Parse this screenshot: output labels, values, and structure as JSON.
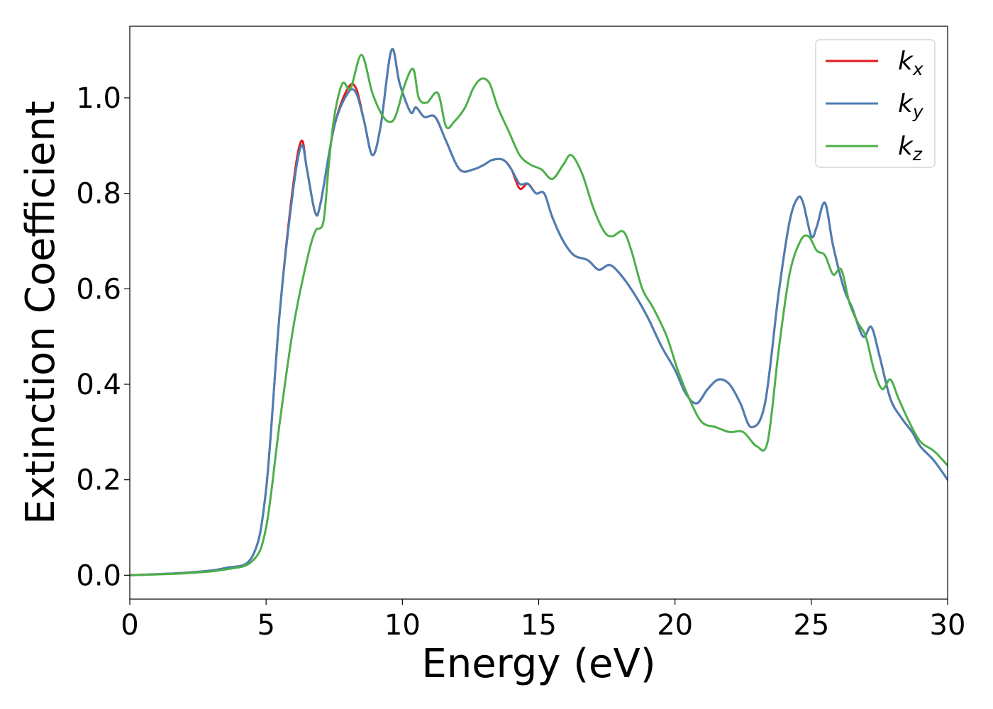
{
  "chart_data": {
    "type": "line",
    "title": "",
    "xlabel": "Energy (eV)",
    "ylabel": "Extinction Coefficient",
    "xlim": [
      0,
      30
    ],
    "ylim": [
      -0.05,
      1.15
    ],
    "xticks": [
      0,
      5,
      10,
      15,
      20,
      25,
      30
    ],
    "xtick_labels": [
      "0",
      "5",
      "10",
      "15",
      "20",
      "25",
      "30"
    ],
    "yticks": [
      0.0,
      0.2,
      0.4,
      0.6,
      0.8,
      1.0
    ],
    "ytick_labels": [
      "0.0",
      "0.2",
      "0.4",
      "0.6",
      "0.8",
      "1.0"
    ],
    "grid": false,
    "legend_position": "top-right",
    "series": [
      {
        "name": "k_x",
        "label_base": "k",
        "label_sub": "x",
        "color": "#e41a1c",
        "x": [
          0,
          2,
          3.5,
          4.5,
          5.0,
          5.5,
          6.0,
          6.3,
          6.5,
          6.8,
          7.0,
          7.5,
          8.0,
          8.3,
          8.6,
          8.9,
          9.2,
          9.6,
          9.9,
          10.3,
          10.5,
          10.8,
          11.2,
          11.6,
          12.1,
          12.6,
          13.0,
          13.3,
          13.7,
          14.0,
          14.3,
          14.6,
          14.9,
          15.2,
          15.5,
          15.9,
          16.3,
          16.8,
          17.2,
          17.6,
          18.0,
          18.5,
          19.0,
          19.5,
          20.0,
          20.4,
          20.8,
          21.2,
          21.6,
          22.0,
          22.4,
          22.8,
          23.3,
          23.8,
          24.2,
          24.5,
          24.7,
          25.0,
          25.2,
          25.5,
          25.8,
          26.2,
          26.5,
          26.9,
          27.2,
          27.5,
          27.9,
          28.3,
          28.7,
          29.0,
          29.5,
          30.0
        ],
        "y": [
          0.0,
          0.005,
          0.015,
          0.04,
          0.18,
          0.55,
          0.82,
          0.91,
          0.85,
          0.76,
          0.78,
          0.94,
          1.02,
          1.02,
          0.95,
          0.88,
          0.94,
          1.1,
          1.03,
          0.97,
          0.98,
          0.96,
          0.96,
          0.91,
          0.85,
          0.85,
          0.86,
          0.87,
          0.87,
          0.85,
          0.81,
          0.82,
          0.8,
          0.8,
          0.75,
          0.7,
          0.67,
          0.66,
          0.64,
          0.65,
          0.63,
          0.59,
          0.54,
          0.48,
          0.43,
          0.38,
          0.36,
          0.39,
          0.41,
          0.4,
          0.36,
          0.31,
          0.36,
          0.59,
          0.74,
          0.79,
          0.78,
          0.71,
          0.73,
          0.78,
          0.69,
          0.6,
          0.56,
          0.5,
          0.52,
          0.46,
          0.37,
          0.33,
          0.3,
          0.27,
          0.24,
          0.2
        ]
      },
      {
        "name": "k_y",
        "label_base": "k",
        "label_sub": "y",
        "color": "#4a7fb5",
        "x": [
          0,
          2,
          3.5,
          4.5,
          5.0,
          5.5,
          6.0,
          6.3,
          6.5,
          6.8,
          7.0,
          7.5,
          8.0,
          8.3,
          8.6,
          8.9,
          9.2,
          9.6,
          9.9,
          10.3,
          10.5,
          10.8,
          11.2,
          11.6,
          12.1,
          12.6,
          13.0,
          13.3,
          13.7,
          14.0,
          14.3,
          14.6,
          14.9,
          15.2,
          15.5,
          15.9,
          16.3,
          16.8,
          17.2,
          17.6,
          18.0,
          18.5,
          19.0,
          19.5,
          20.0,
          20.4,
          20.8,
          21.2,
          21.6,
          22.0,
          22.4,
          22.8,
          23.3,
          23.8,
          24.2,
          24.5,
          24.7,
          25.0,
          25.2,
          25.5,
          25.8,
          26.2,
          26.5,
          26.9,
          27.2,
          27.5,
          27.9,
          28.3,
          28.7,
          29.0,
          29.5,
          30.0
        ],
        "y": [
          0.0,
          0.005,
          0.015,
          0.04,
          0.18,
          0.55,
          0.81,
          0.9,
          0.85,
          0.76,
          0.78,
          0.94,
          1.01,
          1.01,
          0.95,
          0.88,
          0.94,
          1.1,
          1.03,
          0.97,
          0.98,
          0.96,
          0.96,
          0.91,
          0.85,
          0.85,
          0.86,
          0.87,
          0.87,
          0.85,
          0.82,
          0.82,
          0.8,
          0.8,
          0.75,
          0.7,
          0.67,
          0.66,
          0.64,
          0.65,
          0.63,
          0.59,
          0.54,
          0.48,
          0.43,
          0.38,
          0.36,
          0.39,
          0.41,
          0.4,
          0.36,
          0.31,
          0.36,
          0.59,
          0.74,
          0.79,
          0.78,
          0.71,
          0.73,
          0.78,
          0.69,
          0.6,
          0.56,
          0.5,
          0.52,
          0.46,
          0.37,
          0.33,
          0.3,
          0.27,
          0.24,
          0.2
        ]
      },
      {
        "name": "k_z",
        "label_base": "k",
        "label_sub": "z",
        "color": "#4daf4a",
        "x": [
          0,
          2,
          3.5,
          4.5,
          5.0,
          5.5,
          6.0,
          6.5,
          6.8,
          7.1,
          7.3,
          7.5,
          7.8,
          8.1,
          8.5,
          8.9,
          9.3,
          9.6,
          9.8,
          10.1,
          10.4,
          10.6,
          10.9,
          11.3,
          11.6,
          11.9,
          12.3,
          12.6,
          12.9,
          13.2,
          13.5,
          13.9,
          14.3,
          14.7,
          15.1,
          15.5,
          15.9,
          16.2,
          16.6,
          17.0,
          17.4,
          17.7,
          18.1,
          18.4,
          18.8,
          19.2,
          19.7,
          20.1,
          20.6,
          21.0,
          21.5,
          22.0,
          22.5,
          23.0,
          23.4,
          23.8,
          24.2,
          24.6,
          24.9,
          25.2,
          25.5,
          25.8,
          26.1,
          26.4,
          26.7,
          27.0,
          27.3,
          27.6,
          27.9,
          28.2,
          28.6,
          29.0,
          29.5,
          30.0
        ],
        "y": [
          0.0,
          0.004,
          0.012,
          0.03,
          0.1,
          0.32,
          0.52,
          0.66,
          0.72,
          0.74,
          0.86,
          0.96,
          1.03,
          1.02,
          1.09,
          1.01,
          0.96,
          0.95,
          0.97,
          1.03,
          1.06,
          1.0,
          0.99,
          1.01,
          0.94,
          0.95,
          0.98,
          1.02,
          1.04,
          1.03,
          0.98,
          0.93,
          0.88,
          0.86,
          0.85,
          0.83,
          0.86,
          0.88,
          0.84,
          0.77,
          0.72,
          0.71,
          0.72,
          0.68,
          0.6,
          0.56,
          0.5,
          0.43,
          0.36,
          0.32,
          0.31,
          0.3,
          0.3,
          0.27,
          0.28,
          0.47,
          0.63,
          0.7,
          0.71,
          0.68,
          0.67,
          0.63,
          0.64,
          0.57,
          0.53,
          0.5,
          0.43,
          0.39,
          0.41,
          0.37,
          0.32,
          0.28,
          0.26,
          0.23
        ]
      }
    ]
  }
}
